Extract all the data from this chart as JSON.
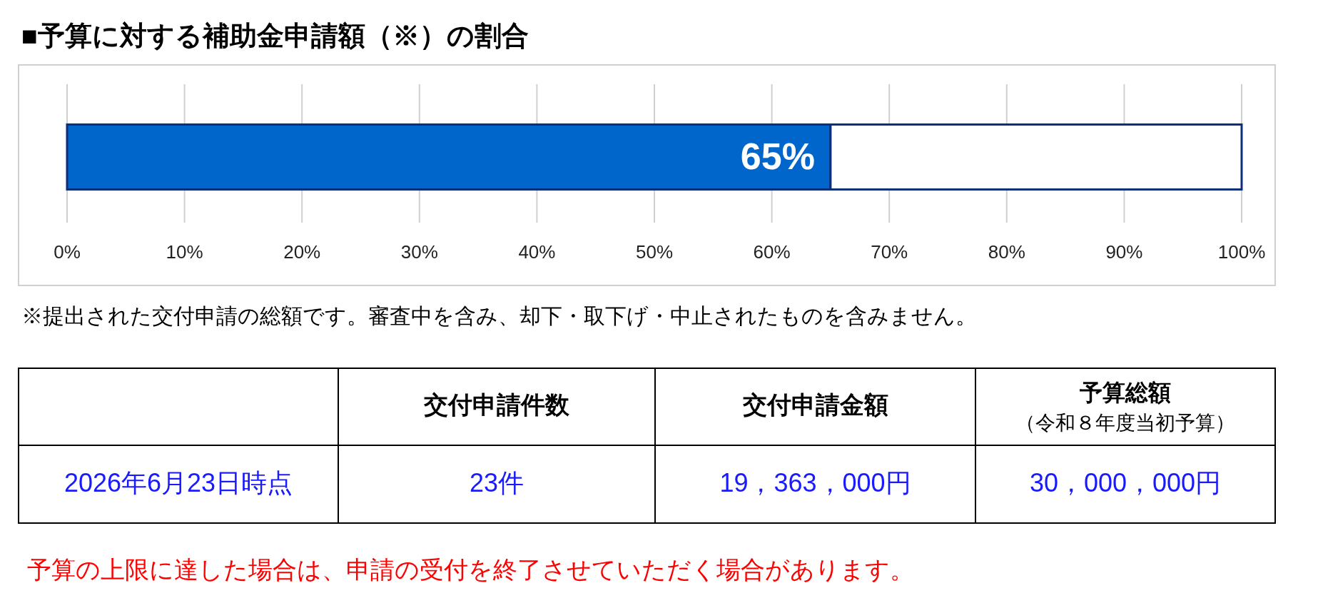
{
  "chart_data": {
    "type": "bar",
    "orientation": "horizontal",
    "stacked": true,
    "title": "■予算に対する補助金申請額（※）の割合",
    "categories": [
      null
    ],
    "series": [
      {
        "color": "#0066cc",
        "values": [
          65
        ],
        "value_labels": [
          "65%"
        ]
      },
      {
        "color": "#ffffff",
        "values": [
          35
        ],
        "value_labels": [
          null
        ]
      }
    ],
    "xlim": [
      0,
      100
    ],
    "xticks": [
      {
        "value": 0,
        "label": "0%"
      },
      {
        "value": 10,
        "label": "10%"
      },
      {
        "value": 20,
        "label": "20%"
      },
      {
        "value": 30,
        "label": "30%"
      },
      {
        "value": 40,
        "label": "40%"
      },
      {
        "value": 50,
        "label": "50%"
      },
      {
        "value": 60,
        "label": "60%"
      },
      {
        "value": 70,
        "label": "70%"
      },
      {
        "value": 80,
        "label": "80%"
      },
      {
        "value": 90,
        "label": "90%"
      },
      {
        "value": 100,
        "label": "100%"
      }
    ],
    "grid": "x",
    "annotations": [
      "※提出された交付申請の総額です。審査中を含み、却下・取下げ・中止されたものを含みません。",
      "交付申請件数",
      "交付申請金額",
      "予算総額",
      "（令和８年度当初予算）",
      "2026年6月23日時点",
      "23件",
      "19，363，000円",
      "30，000，000円",
      "予算の上限に達した場合は、申請の受付を終了させていただく場合があります。"
    ]
  }
}
